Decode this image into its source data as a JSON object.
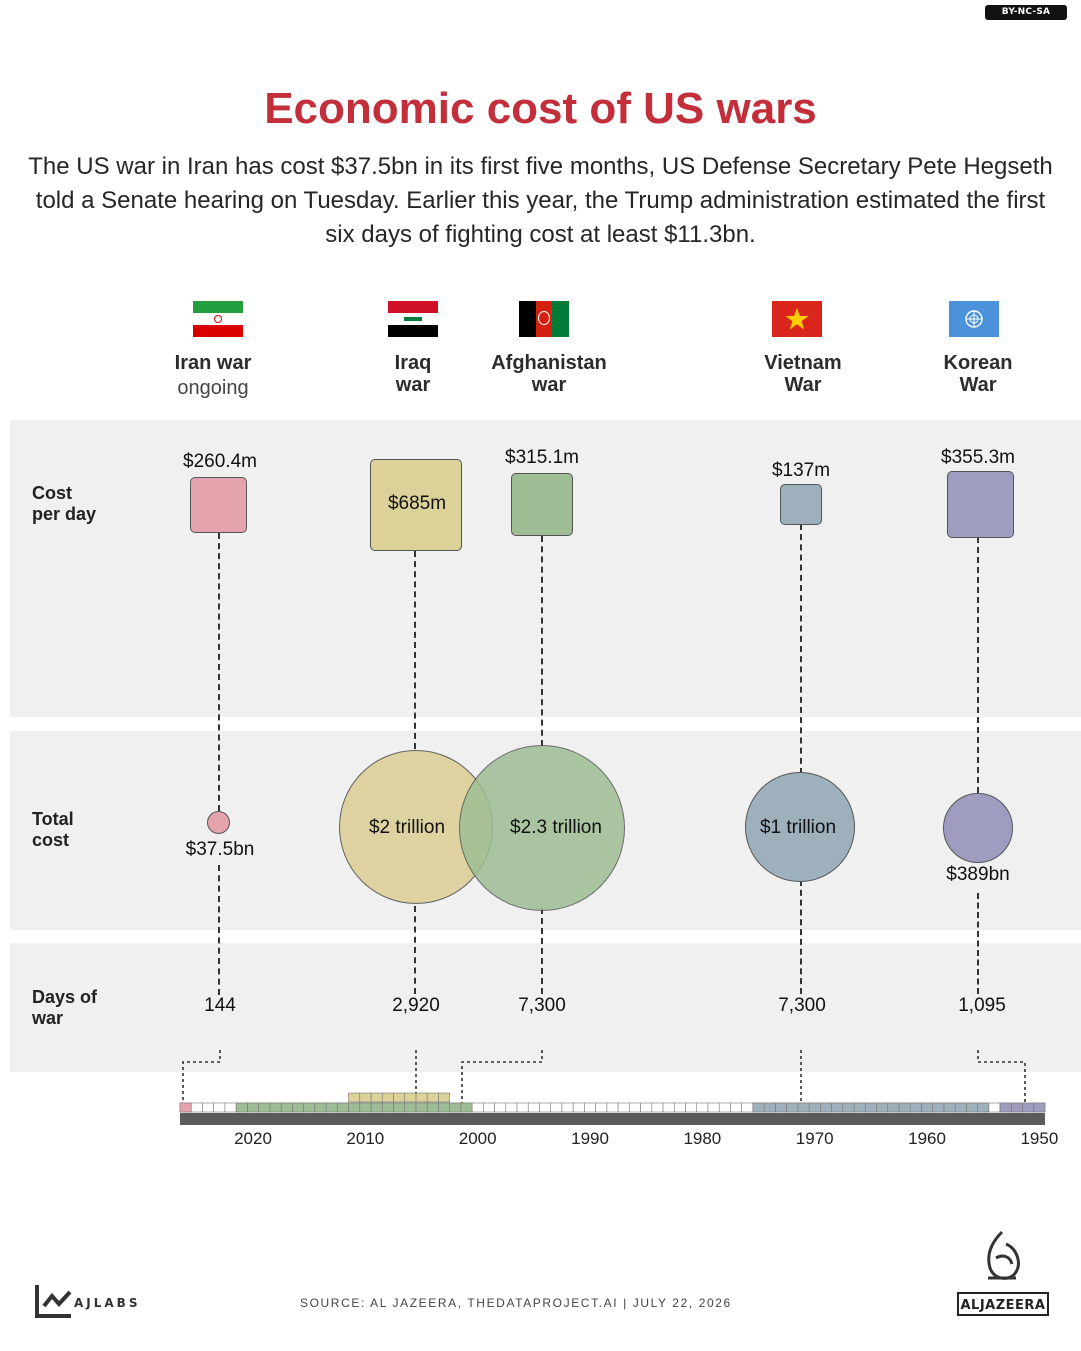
{
  "license": "BY-NC-SA",
  "title": "Economic cost of US wars",
  "subtitle": "The US war in Iran has cost $37.5bn in its first five months, US Defense Secretary Pete Hegseth told a Senate hearing on Tuesday. Earlier this year, the Trump administration estimated the first six days of fighting cost at least $11.3bn.",
  "row_labels": {
    "cost_per_day": "Cost\nper day",
    "total_cost": "Total\ncost",
    "days": "Days of\nwar"
  },
  "wars": [
    {
      "name": "Iran war",
      "status": "ongoing",
      "cost_per_day": "$260.4m",
      "total_cost": "$37.5bn",
      "days": "144",
      "color": "#e5a3ad"
    },
    {
      "name": "Iraq\nwar",
      "status": "",
      "cost_per_day": "$685m",
      "total_cost": "$2 trillion",
      "days": "2,920",
      "color": "#ddd19a"
    },
    {
      "name": "Afghanistan\nwar",
      "status": "",
      "cost_per_day": "$315.1m",
      "total_cost": "$2.3 trillion",
      "days": "7,300",
      "color": "#9ebd95"
    },
    {
      "name": "Vietnam\nWar",
      "status": "",
      "cost_per_day": "$137m",
      "total_cost": "$1 trillion",
      "days": "7,300",
      "color": "#9eb0bb"
    },
    {
      "name": "Korean\nWar",
      "status": "",
      "cost_per_day": "$355.3m",
      "total_cost": "$389bn",
      "days": "1,095",
      "color": "#9f9dbf"
    }
  ],
  "chart_data": {
    "type": "timeline",
    "title": "Economic cost of US wars",
    "series": [
      {
        "name": "Iran war",
        "cost_per_day_usd_m": 260.4,
        "total_cost_usd_bn": 37.5,
        "days": 144
      },
      {
        "name": "Iraq war",
        "cost_per_day_usd_m": 685,
        "total_cost_usd_bn": 2000,
        "days": 2920
      },
      {
        "name": "Afghanistan war",
        "cost_per_day_usd_m": 315.1,
        "total_cost_usd_bn": 2300,
        "days": 7300
      },
      {
        "name": "Vietnam War",
        "cost_per_day_usd_m": 137,
        "total_cost_usd_bn": 1000,
        "days": 7300
      },
      {
        "name": "Korean War",
        "cost_per_day_usd_m": 355.3,
        "total_cost_usd_bn": 389,
        "days": 1095
      }
    ],
    "timeline_ticks": [
      "2020",
      "2010",
      "2000",
      "1990",
      "1980",
      "1970",
      "1960",
      "1950"
    ],
    "timeline_spans": [
      {
        "war": "Iran war",
        "from": 2026,
        "to": 2026
      },
      {
        "war": "Iraq war",
        "from": 2003,
        "to": 2011
      },
      {
        "war": "Afghanistan war",
        "from": 2001,
        "to": 2021
      },
      {
        "war": "Vietnam War",
        "from": 1955,
        "to": 1975
      },
      {
        "war": "Korean War",
        "from": 1950,
        "to": 1953
      }
    ]
  },
  "footer": {
    "brand": "AJLABS",
    "source": "SOURCE:  AL JAZEERA, THEDATAPROJECT.AI  |  JULY 22, 2026",
    "logo_text": "ALJAZEERA"
  }
}
